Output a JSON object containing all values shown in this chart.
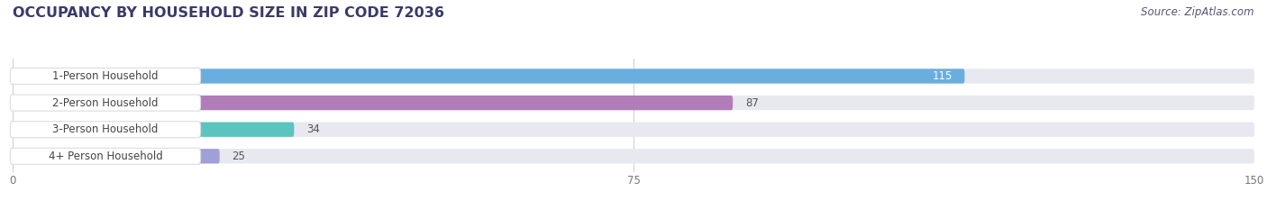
{
  "title": "OCCUPANCY BY HOUSEHOLD SIZE IN ZIP CODE 72036",
  "source": "Source: ZipAtlas.com",
  "categories": [
    "1-Person Household",
    "2-Person Household",
    "3-Person Household",
    "4+ Person Household"
  ],
  "values": [
    115,
    87,
    34,
    25
  ],
  "bar_colors": [
    "#6aaee0",
    "#b07db8",
    "#5cc4bf",
    "#a0a0d8"
  ],
  "xlim": [
    0,
    150
  ],
  "xticks": [
    0,
    75,
    150
  ],
  "background_color": "#ffffff",
  "bar_bg_color": "#e8e8f0",
  "title_fontsize": 11.5,
  "label_fontsize": 8.5,
  "value_fontsize": 8.5,
  "source_fontsize": 8.5,
  "title_color": "#3a3a6a",
  "label_color": "#444444",
  "value_color_inside": "#ffffff",
  "value_color_outside": "#555555",
  "source_color": "#555577",
  "grid_color": "#cccccc",
  "tick_color": "#777777",
  "pill_bg": "#ffffff",
  "pill_border_color": "#dddddd"
}
